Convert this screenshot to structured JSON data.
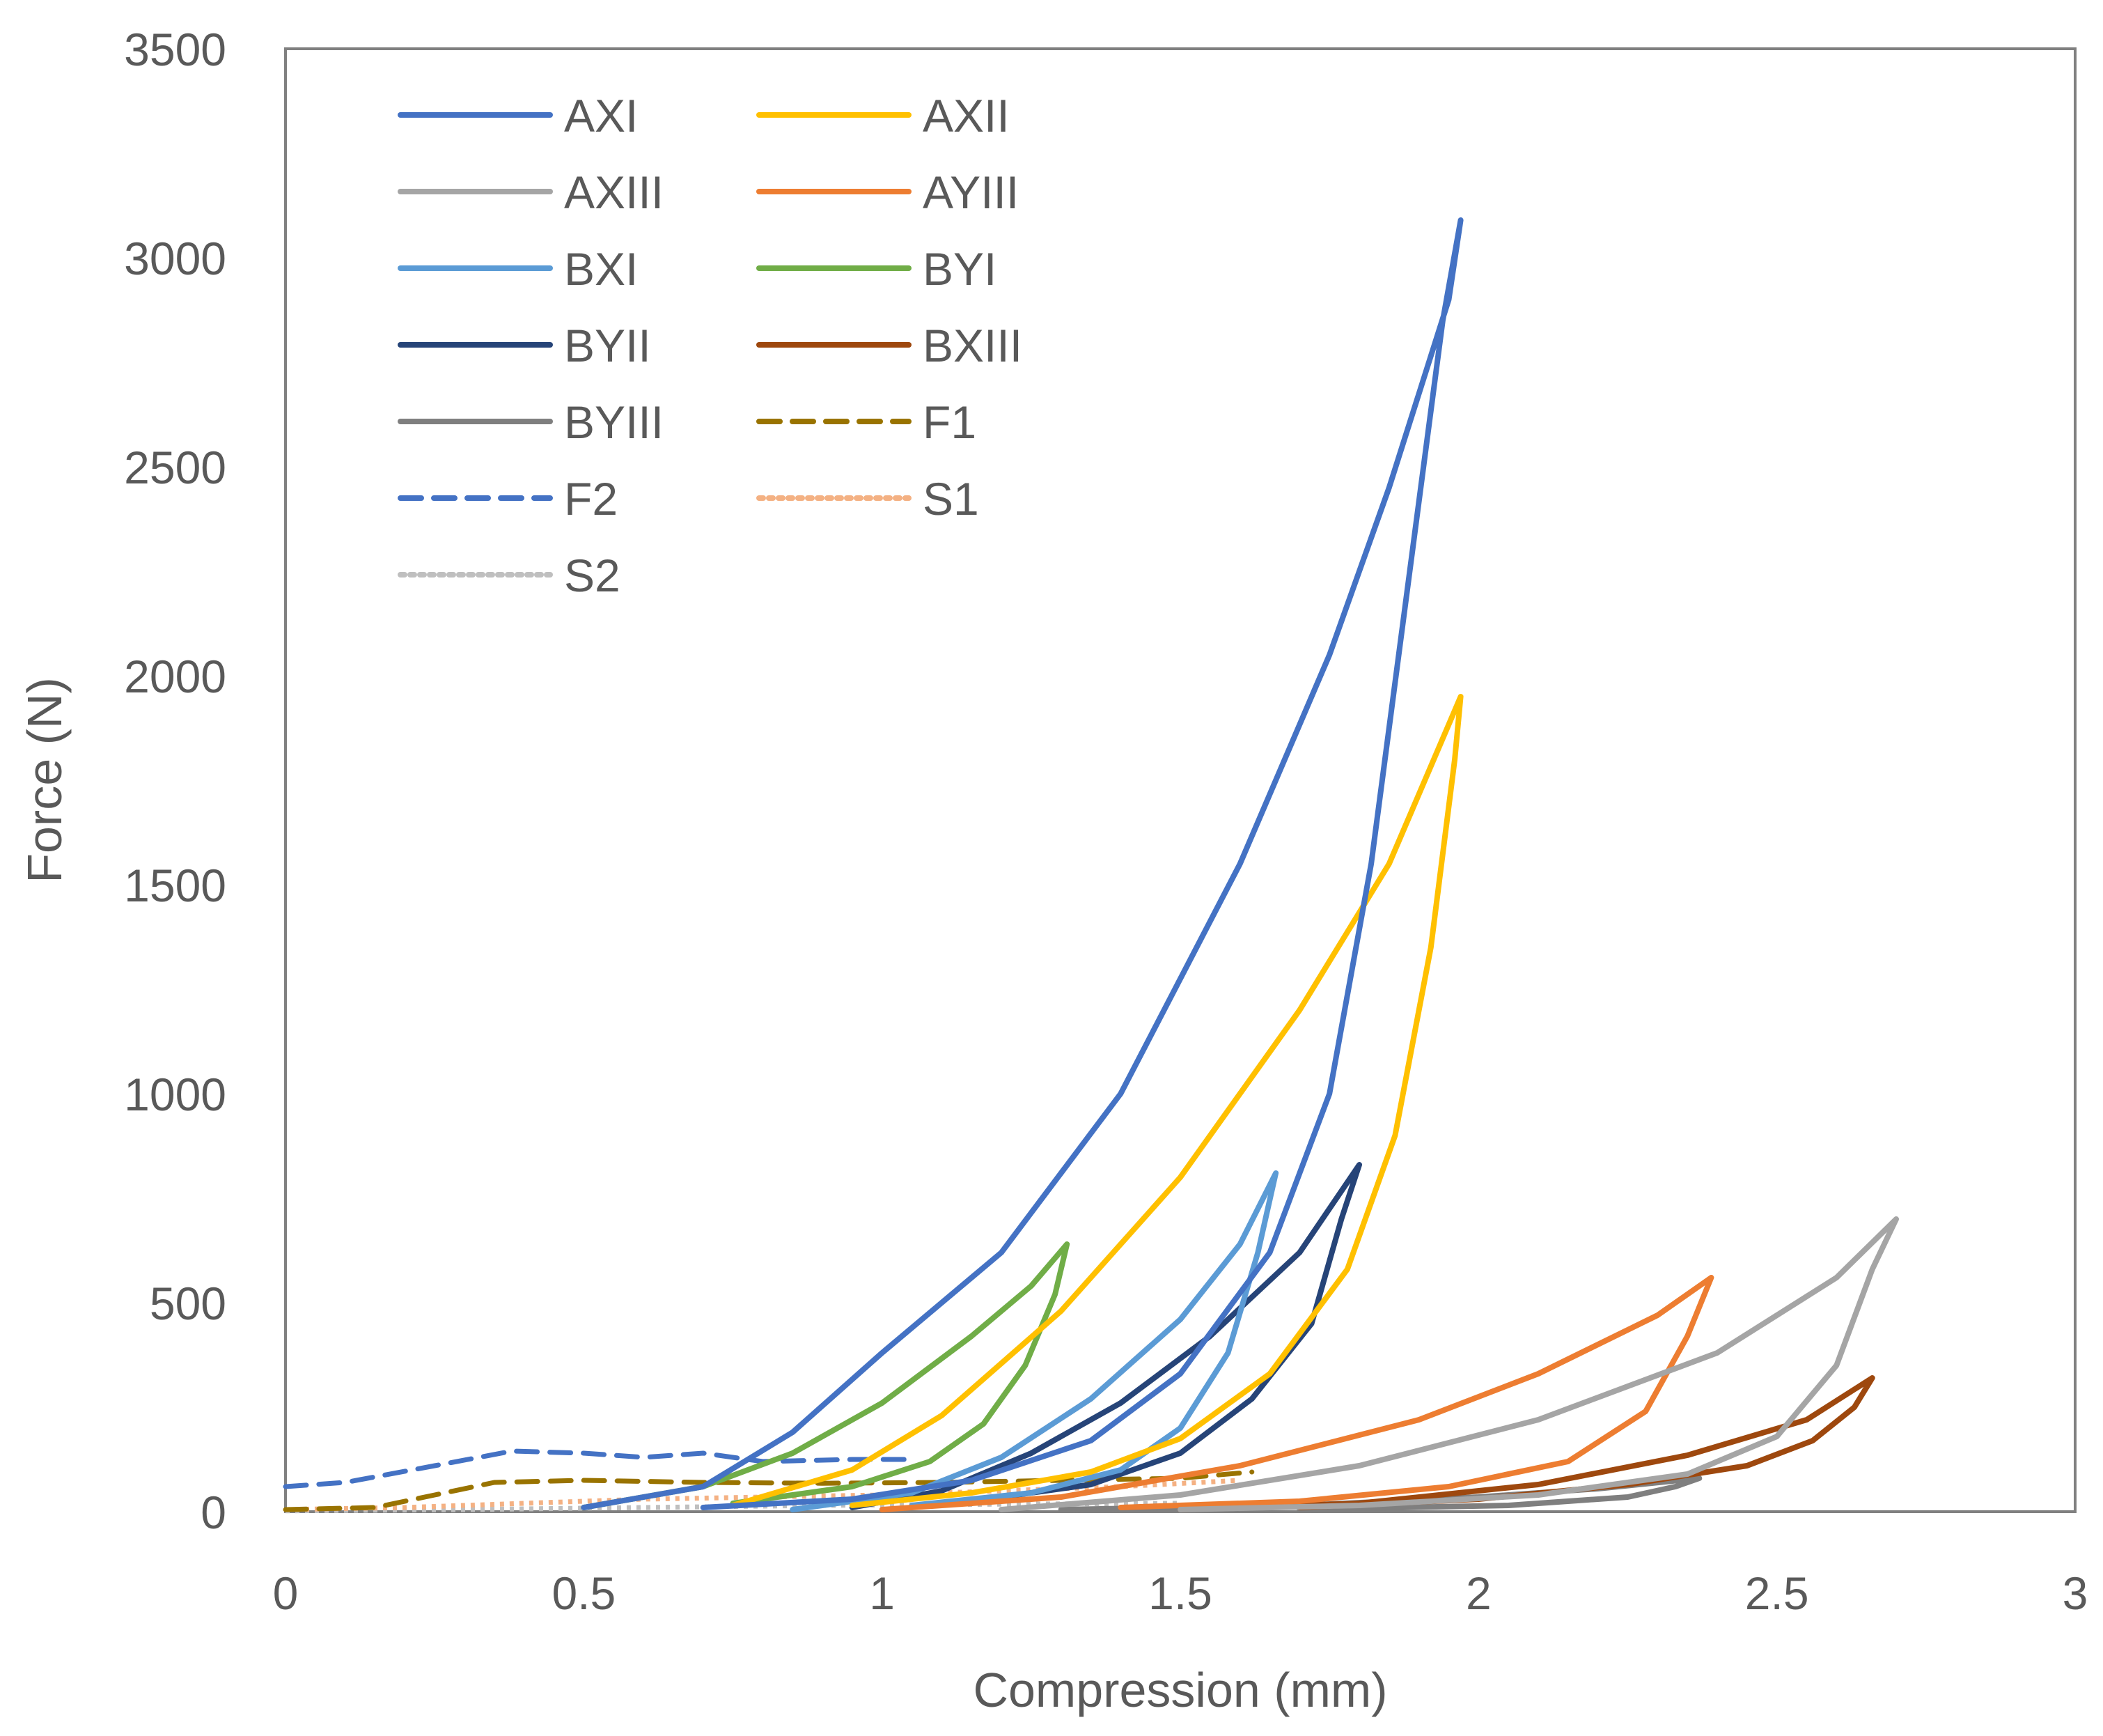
{
  "chart_data": {
    "type": "line",
    "title": "",
    "xlabel": "Compression (mm)",
    "ylabel": "Force (N)",
    "xlim": [
      0,
      3
    ],
    "ylim": [
      0,
      3500
    ],
    "xticks": [
      0,
      0.5,
      1,
      1.5,
      2,
      2.5,
      3
    ],
    "xtick_labels": [
      "0",
      "0.5",
      "1",
      "1.5",
      "2",
      "2.5",
      "3"
    ],
    "yticks": [
      0,
      500,
      1000,
      1500,
      2000,
      2500,
      3000,
      3500
    ],
    "ytick_labels": [
      "0",
      "500",
      "1000",
      "1500",
      "2000",
      "2500",
      "3000",
      "3500"
    ],
    "grid": false,
    "legend_position": "top-left",
    "series": [
      {
        "name": "AXI",
        "color": "#4472C4",
        "style": "solid",
        "points": [
          [
            0.5,
            10
          ],
          [
            0.7,
            60
          ],
          [
            0.85,
            190
          ],
          [
            1.0,
            380
          ],
          [
            1.2,
            620
          ],
          [
            1.4,
            1000
          ],
          [
            1.6,
            1550
          ],
          [
            1.75,
            2050
          ],
          [
            1.85,
            2450
          ],
          [
            1.95,
            2900
          ],
          [
            1.97,
            3090
          ],
          [
            1.94,
            2850
          ],
          [
            1.88,
            2200
          ],
          [
            1.82,
            1550
          ],
          [
            1.75,
            1000
          ],
          [
            1.65,
            620
          ],
          [
            1.5,
            330
          ],
          [
            1.35,
            170
          ],
          [
            1.15,
            75
          ],
          [
            0.95,
            30
          ],
          [
            0.7,
            10
          ]
        ]
      },
      {
        "name": "AXII",
        "color": "#FFC000",
        "style": "solid",
        "points": [
          [
            0.75,
            15
          ],
          [
            0.95,
            100
          ],
          [
            1.1,
            230
          ],
          [
            1.3,
            480
          ],
          [
            1.5,
            800
          ],
          [
            1.7,
            1200
          ],
          [
            1.85,
            1550
          ],
          [
            1.97,
            1950
          ],
          [
            1.96,
            1800
          ],
          [
            1.92,
            1350
          ],
          [
            1.86,
            900
          ],
          [
            1.78,
            580
          ],
          [
            1.65,
            330
          ],
          [
            1.5,
            175
          ],
          [
            1.35,
            95
          ],
          [
            1.15,
            45
          ],
          [
            0.95,
            15
          ]
        ]
      },
      {
        "name": "AXIII",
        "color": "#A5A5A5",
        "style": "solid",
        "points": [
          [
            1.2,
            5
          ],
          [
            1.5,
            40
          ],
          [
            1.8,
            110
          ],
          [
            2.1,
            220
          ],
          [
            2.4,
            380
          ],
          [
            2.6,
            560
          ],
          [
            2.7,
            700
          ],
          [
            2.66,
            580
          ],
          [
            2.6,
            350
          ],
          [
            2.5,
            180
          ],
          [
            2.35,
            90
          ],
          [
            2.1,
            40
          ],
          [
            1.8,
            15
          ],
          [
            1.5,
            5
          ]
        ]
      },
      {
        "name": "AYIII",
        "color": "#ED7D31",
        "style": "solid",
        "points": [
          [
            1.0,
            5
          ],
          [
            1.3,
            35
          ],
          [
            1.6,
            110
          ],
          [
            1.9,
            220
          ],
          [
            2.1,
            330
          ],
          [
            2.3,
            470
          ],
          [
            2.39,
            560
          ],
          [
            2.35,
            420
          ],
          [
            2.28,
            240
          ],
          [
            2.15,
            120
          ],
          [
            1.95,
            60
          ],
          [
            1.7,
            25
          ],
          [
            1.4,
            10
          ]
        ]
      },
      {
        "name": "BXI",
        "color": "#5B9BD5",
        "style": "solid",
        "points": [
          [
            0.85,
            5
          ],
          [
            1.05,
            45
          ],
          [
            1.2,
            130
          ],
          [
            1.35,
            270
          ],
          [
            1.5,
            460
          ],
          [
            1.6,
            640
          ],
          [
            1.66,
            810
          ],
          [
            1.63,
            620
          ],
          [
            1.58,
            380
          ],
          [
            1.5,
            200
          ],
          [
            1.4,
            100
          ],
          [
            1.25,
            45
          ],
          [
            1.05,
            15
          ]
        ]
      },
      {
        "name": "BYI",
        "color": "#70AD47",
        "style": "solid",
        "points": [
          [
            0.5,
            10
          ],
          [
            0.7,
            60
          ],
          [
            0.85,
            140
          ],
          [
            1.0,
            260
          ],
          [
            1.15,
            420
          ],
          [
            1.25,
            540
          ],
          [
            1.31,
            640
          ],
          [
            1.29,
            520
          ],
          [
            1.24,
            350
          ],
          [
            1.17,
            210
          ],
          [
            1.08,
            120
          ],
          [
            0.95,
            60
          ],
          [
            0.75,
            20
          ]
        ]
      },
      {
        "name": "BYII",
        "color": "#264478",
        "style": "solid",
        "points": [
          [
            0.95,
            10
          ],
          [
            1.1,
            50
          ],
          [
            1.25,
            140
          ],
          [
            1.4,
            260
          ],
          [
            1.55,
            420
          ],
          [
            1.7,
            620
          ],
          [
            1.8,
            830
          ],
          [
            1.77,
            700
          ],
          [
            1.72,
            450
          ],
          [
            1.62,
            270
          ],
          [
            1.5,
            140
          ],
          [
            1.35,
            65
          ],
          [
            1.15,
            25
          ]
        ]
      },
      {
        "name": "BXIII",
        "color": "#9E480E",
        "style": "solid",
        "points": [
          [
            1.5,
            5
          ],
          [
            1.8,
            20
          ],
          [
            2.1,
            65
          ],
          [
            2.35,
            135
          ],
          [
            2.55,
            220
          ],
          [
            2.66,
            320
          ],
          [
            2.63,
            250
          ],
          [
            2.56,
            170
          ],
          [
            2.45,
            110
          ],
          [
            2.25,
            65
          ],
          [
            2.0,
            30
          ],
          [
            1.7,
            10
          ]
        ]
      },
      {
        "name": "BYIII",
        "color": "#7F7F7F",
        "style": "solid",
        "points": [
          [
            1.3,
            5
          ],
          [
            1.7,
            15
          ],
          [
            2.0,
            35
          ],
          [
            2.2,
            55
          ],
          [
            2.37,
            80
          ],
          [
            2.33,
            60
          ],
          [
            2.25,
            35
          ],
          [
            2.05,
            15
          ],
          [
            1.7,
            5
          ]
        ]
      },
      {
        "name": "F1",
        "color": "#997300",
        "style": "dashed",
        "points": [
          [
            0,
            5
          ],
          [
            0.15,
            10
          ],
          [
            0.25,
            40
          ],
          [
            0.35,
            70
          ],
          [
            0.5,
            75
          ],
          [
            0.7,
            70
          ],
          [
            0.9,
            68
          ],
          [
            1.1,
            70
          ],
          [
            1.3,
            75
          ],
          [
            1.5,
            80
          ],
          [
            1.62,
            95
          ]
        ]
      },
      {
        "name": "F2",
        "color": "#4472C4",
        "style": "dashed",
        "points": [
          [
            0,
            60
          ],
          [
            0.1,
            70
          ],
          [
            0.25,
            110
          ],
          [
            0.38,
            145
          ],
          [
            0.5,
            140
          ],
          [
            0.6,
            130
          ],
          [
            0.7,
            140
          ],
          [
            0.8,
            120
          ],
          [
            0.95,
            125
          ],
          [
            1.05,
            125
          ]
        ]
      },
      {
        "name": "S1",
        "color": "#F4B183",
        "style": "dotted",
        "points": [
          [
            0,
            5
          ],
          [
            0.2,
            10
          ],
          [
            0.4,
            20
          ],
          [
            0.6,
            30
          ],
          [
            0.8,
            35
          ],
          [
            1.0,
            40
          ],
          [
            1.2,
            50
          ],
          [
            1.4,
            60
          ],
          [
            1.6,
            75
          ]
        ]
      },
      {
        "name": "S2",
        "color": "#BFBFBF",
        "style": "dotted",
        "points": [
          [
            0,
            2
          ],
          [
            0.3,
            5
          ],
          [
            0.6,
            10
          ],
          [
            0.9,
            15
          ],
          [
            1.2,
            18
          ],
          [
            1.5,
            20
          ]
        ]
      }
    ]
  }
}
